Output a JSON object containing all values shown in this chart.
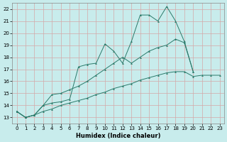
{
  "xlabel": "Humidex (Indice chaleur)",
  "bg_color": "#c8ecec",
  "grid_color": "#d4a8a8",
  "line_color": "#2a7a6a",
  "xlim": [
    -0.5,
    23.5
  ],
  "ylim": [
    12.5,
    22.5
  ],
  "xticks": [
    0,
    1,
    2,
    3,
    4,
    5,
    6,
    7,
    8,
    9,
    10,
    11,
    12,
    13,
    14,
    15,
    16,
    17,
    18,
    19,
    20,
    21,
    22,
    23
  ],
  "yticks": [
    13,
    14,
    15,
    16,
    17,
    18,
    19,
    20,
    21,
    22
  ],
  "line1_y": [
    13.5,
    13.0,
    13.2,
    14.0,
    14.2,
    14.3,
    14.5,
    17.2,
    17.4,
    17.5,
    19.1,
    18.5,
    17.5,
    19.3,
    21.5,
    21.5,
    21.0,
    22.2,
    21.0,
    19.3,
    16.8,
    null,
    null,
    null
  ],
  "line2_y": [
    13.5,
    13.0,
    13.2,
    13.5,
    13.7,
    14.0,
    14.2,
    14.4,
    14.6,
    14.9,
    15.1,
    15.4,
    15.6,
    15.8,
    16.1,
    16.3,
    16.5,
    16.7,
    16.8,
    16.8,
    16.4,
    16.5,
    16.5,
    16.5
  ],
  "line3_y": [
    13.5,
    13.0,
    13.2,
    14.0,
    14.9,
    15.0,
    15.3,
    15.6,
    16.0,
    16.5,
    17.0,
    17.5,
    18.0,
    17.5,
    18.0,
    18.5,
    18.8,
    19.0,
    19.5,
    19.2,
    16.8,
    null,
    null,
    null
  ]
}
